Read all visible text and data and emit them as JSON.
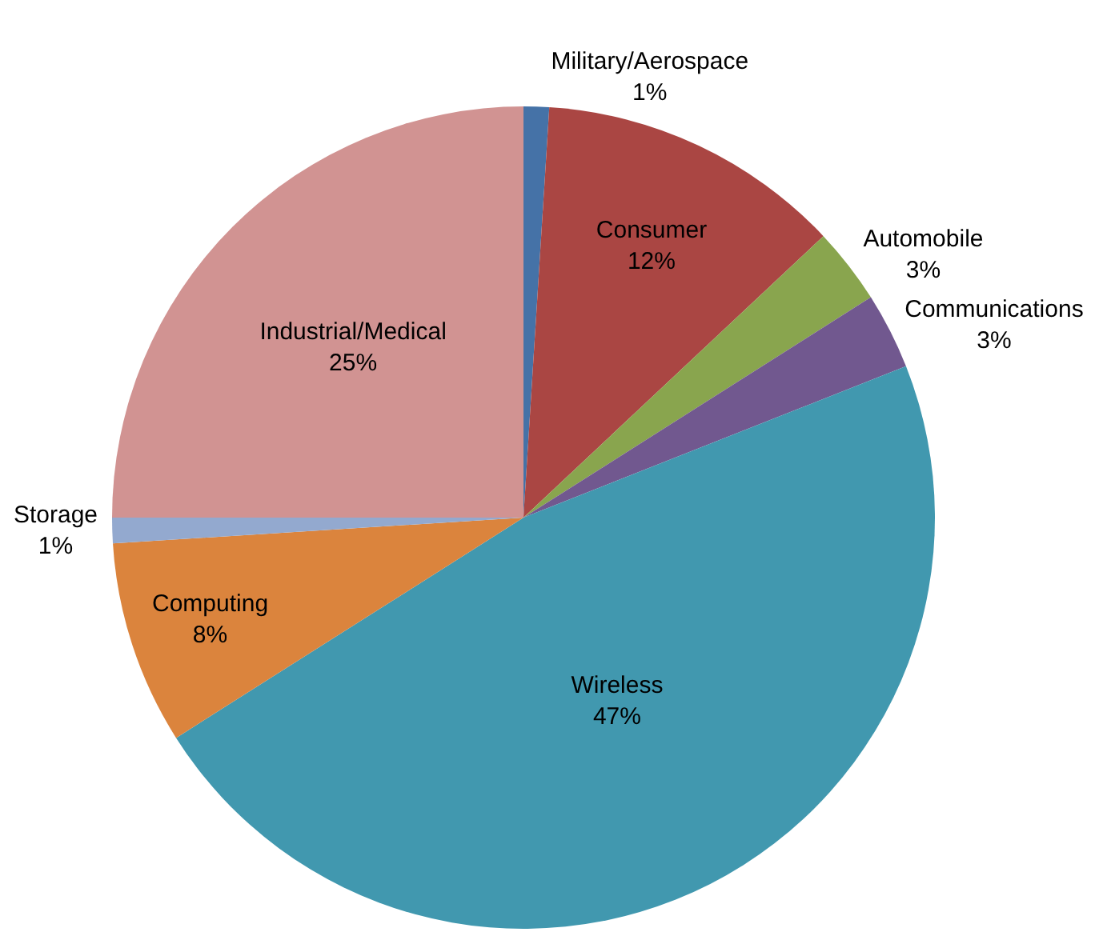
{
  "chart_data": {
    "type": "pie",
    "categories": [
      "Military/Aerospace",
      "Consumer",
      "Automobile",
      "Communications",
      "Wireless",
      "Computing",
      "Storage",
      "Industrial/Medical"
    ],
    "values": [
      1,
      12,
      3,
      3,
      47,
      8,
      1,
      25
    ],
    "value_labels": [
      "1%",
      "12%",
      "3%",
      "3%",
      "47%",
      "8%",
      "1%",
      "25%"
    ],
    "colors": [
      "#4572a7",
      "#aa4643",
      "#89a54e",
      "#71588f",
      "#4198af",
      "#db843d",
      "#93a9cf",
      "#d19392"
    ],
    "legend": false
  }
}
